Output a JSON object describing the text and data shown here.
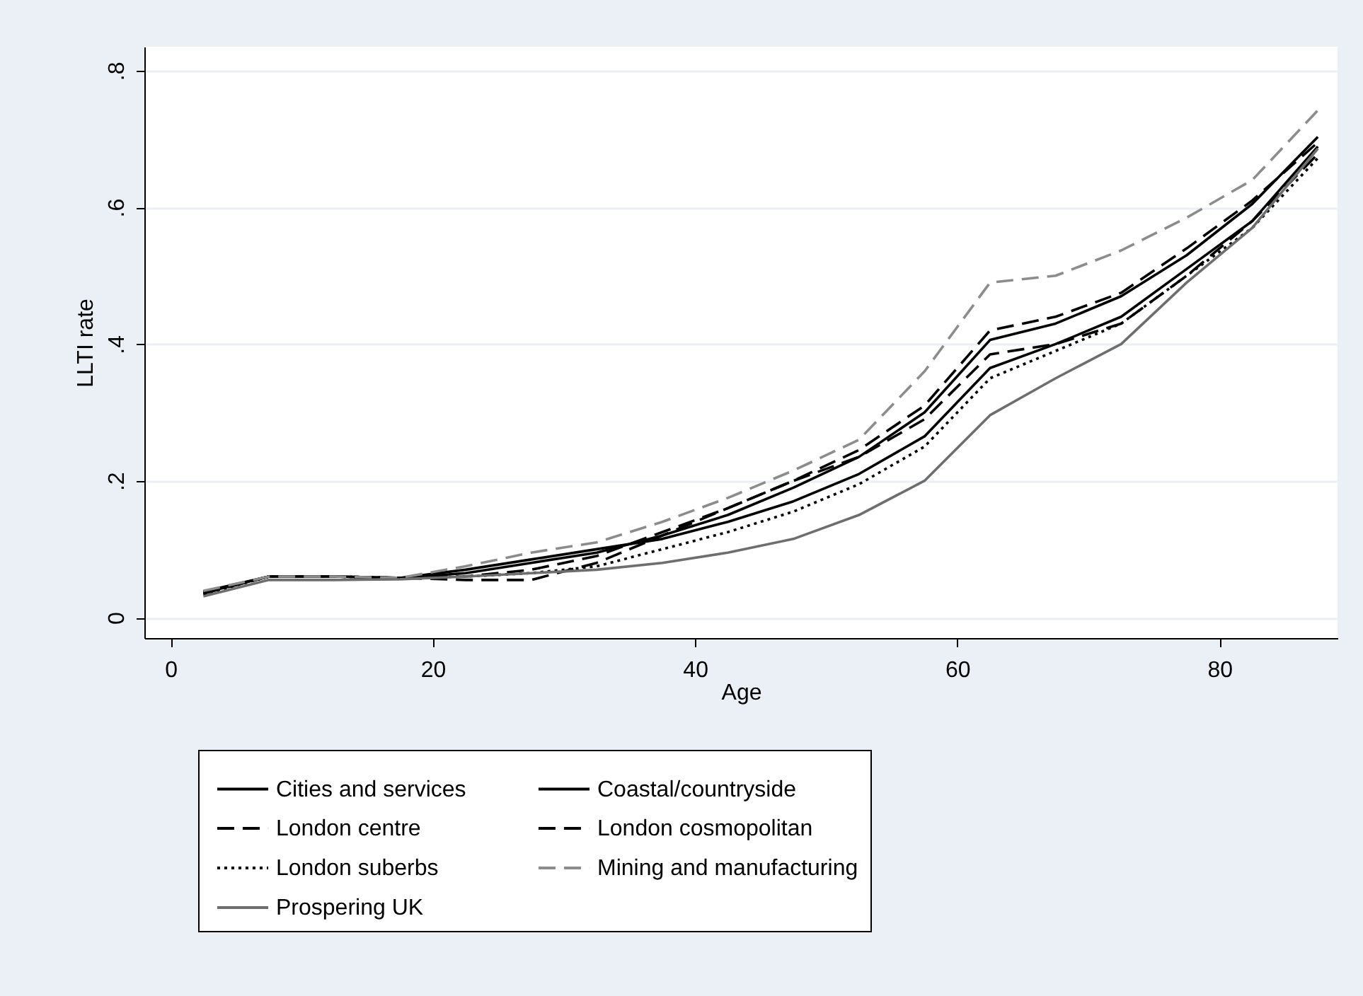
{
  "chart_data": {
    "type": "line",
    "xlabel": "Age",
    "ylabel": "LLTI rate",
    "x": [
      2.5,
      7.5,
      12.5,
      17.5,
      22.5,
      27.5,
      32.5,
      37.5,
      42.5,
      47.5,
      52.5,
      57.5,
      62.5,
      67.5,
      72.5,
      77.5,
      82.5,
      87.5
    ],
    "xlim": [
      -2,
      89
    ],
    "xticks": [
      0,
      20,
      40,
      60,
      80
    ],
    "ylim": [
      -0.03,
      0.835
    ],
    "yticks": [
      {
        "value": 0,
        "label": "0"
      },
      {
        "value": 0.2,
        "label": ".2"
      },
      {
        "value": 0.4,
        "label": ".4"
      },
      {
        "value": 0.6,
        "label": ".6"
      },
      {
        "value": 0.8,
        "label": ".8"
      }
    ],
    "grid": "y",
    "legend": "bottom",
    "series": [
      {
        "name": "Cities and services",
        "color": "#000000",
        "line_style": "solid",
        "values": [
          0.038,
          0.06,
          0.06,
          0.058,
          0.065,
          0.08,
          0.095,
          0.12,
          0.15,
          0.19,
          0.235,
          0.3,
          0.406,
          0.43,
          0.47,
          0.53,
          0.605,
          0.703
        ]
      },
      {
        "name": "Coastal/countryside",
        "color": "#000000",
        "line_style": "solid",
        "values": [
          0.036,
          0.06,
          0.06,
          0.058,
          0.07,
          0.085,
          0.1,
          0.115,
          0.14,
          0.17,
          0.21,
          0.265,
          0.365,
          0.4,
          0.44,
          0.51,
          0.58,
          0.689
        ]
      },
      {
        "name": "London centre",
        "color": "#000000",
        "line_style": "dashed",
        "values": [
          0.035,
          0.06,
          0.06,
          0.058,
          0.055,
          0.055,
          0.08,
          0.12,
          0.16,
          0.2,
          0.235,
          0.29,
          0.385,
          0.4,
          0.43,
          0.5,
          0.58,
          0.678
        ]
      },
      {
        "name": "London cosmopolitan",
        "color": "#000000",
        "line_style": "dashed",
        "values": [
          0.037,
          0.06,
          0.06,
          0.058,
          0.06,
          0.07,
          0.09,
          0.125,
          0.16,
          0.2,
          0.245,
          0.31,
          0.42,
          0.44,
          0.475,
          0.54,
          0.61,
          0.695
        ]
      },
      {
        "name": "London suberbs",
        "color": "#000000",
        "line_style": "dotted",
        "values": [
          0.034,
          0.06,
          0.06,
          0.058,
          0.06,
          0.065,
          0.075,
          0.1,
          0.125,
          0.155,
          0.195,
          0.25,
          0.35,
          0.39,
          0.43,
          0.5,
          0.57,
          0.672
        ]
      },
      {
        "name": "Mining and manufacturing",
        "color": "#8c8c8c",
        "line_style": "dashed",
        "values": [
          0.039,
          0.06,
          0.06,
          0.058,
          0.075,
          0.095,
          0.11,
          0.14,
          0.175,
          0.215,
          0.26,
          0.36,
          0.49,
          0.5,
          0.537,
          0.585,
          0.64,
          0.742
        ]
      },
      {
        "name": "Prospering UK",
        "color": "#6e6e6e",
        "line_style": "solid",
        "values": [
          0.031,
          0.055,
          0.055,
          0.056,
          0.06,
          0.065,
          0.07,
          0.08,
          0.095,
          0.115,
          0.15,
          0.2,
          0.296,
          0.35,
          0.4,
          0.49,
          0.57,
          0.686
        ]
      }
    ]
  }
}
